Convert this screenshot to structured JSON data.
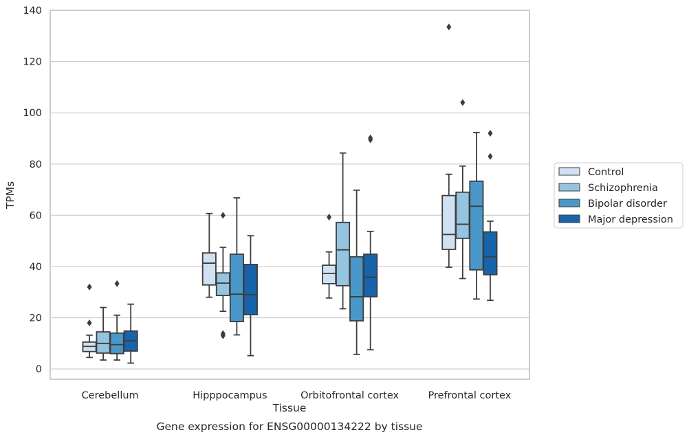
{
  "chart_data": {
    "type": "box",
    "xlabel": "Tissue",
    "ylabel": "TPMs",
    "caption": "Gene expression for ENSG00000134222 by tissue",
    "ylim": [
      -4,
      140
    ],
    "yticks": [
      0,
      20,
      40,
      60,
      80,
      100,
      120,
      140
    ],
    "grid": "horizontal",
    "legend_position": "right",
    "categories": [
      "Cerebellum",
      "Hipppocampus",
      "Orbitofrontal cortex",
      "Prefrontal cortex"
    ],
    "series": [
      {
        "name": "Control",
        "color": "#d0e1f2",
        "boxes": [
          {
            "whislo": 4.5,
            "q1": 6.8,
            "med": 8.8,
            "q3": 10.5,
            "whishi": 13.2,
            "fliers": [
              18,
              32
            ]
          },
          {
            "whislo": 28,
            "q1": 32.8,
            "med": 41.3,
            "q3": 45.3,
            "whishi": 60.7,
            "fliers": []
          },
          {
            "whislo": 27.7,
            "q1": 33.3,
            "med": 37.3,
            "q3": 40.5,
            "whishi": 45.7,
            "fliers": [
              59.3
            ]
          },
          {
            "whislo": 39.7,
            "q1": 46.7,
            "med": 52.5,
            "q3": 67.7,
            "whishi": 76,
            "fliers": [
              133.5
            ]
          }
        ]
      },
      {
        "name": "Schizophrenia",
        "color": "#94c4df",
        "boxes": [
          {
            "whislo": 3.5,
            "q1": 6.2,
            "med": 10,
            "q3": 14.5,
            "whishi": 24,
            "fliers": []
          },
          {
            "whislo": 22.5,
            "q1": 28.7,
            "med": 33.5,
            "q3": 37.5,
            "whishi": 47.5,
            "fliers": [
              13,
              13.8,
              60
            ]
          },
          {
            "whislo": 23.5,
            "q1": 32.5,
            "med": 46.5,
            "q3": 57.2,
            "whishi": 84.3,
            "fliers": []
          },
          {
            "whislo": 35.3,
            "q1": 51,
            "med": 56.5,
            "q3": 69,
            "whishi": 79.2,
            "fliers": [
              104
            ]
          }
        ]
      },
      {
        "name": "Bipolar disorder",
        "color": "#4a98c9",
        "boxes": [
          {
            "whislo": 3.5,
            "q1": 6,
            "med": 9.5,
            "q3": 14,
            "whishi": 21,
            "fliers": [
              33.3
            ]
          },
          {
            "whislo": 13.3,
            "q1": 18.5,
            "med": 29.2,
            "q3": 44.8,
            "whishi": 66.8,
            "fliers": []
          },
          {
            "whislo": 5.7,
            "q1": 18.8,
            "med": 28.2,
            "q3": 43.8,
            "whishi": 69.8,
            "fliers": []
          },
          {
            "whislo": 27.3,
            "q1": 38.7,
            "med": 63.5,
            "q3": 73.3,
            "whishi": 92.3,
            "fliers": []
          }
        ]
      },
      {
        "name": "Major depression",
        "color": "#1764ab",
        "boxes": [
          {
            "whislo": 2.3,
            "q1": 7,
            "med": 11,
            "q3": 14.8,
            "whishi": 25.3,
            "fliers": []
          },
          {
            "whislo": 5.2,
            "q1": 21.2,
            "med": 29,
            "q3": 40.8,
            "whishi": 52,
            "fliers": []
          },
          {
            "whislo": 7.5,
            "q1": 28.2,
            "med": 35.8,
            "q3": 44.8,
            "whishi": 53.7,
            "fliers": [
              89.5,
              90.2
            ]
          },
          {
            "whislo": 26.8,
            "q1": 36.8,
            "med": 43.8,
            "q3": 53.5,
            "whishi": 57.7,
            "fliers": [
              83,
              92
            ]
          }
        ]
      }
    ]
  }
}
